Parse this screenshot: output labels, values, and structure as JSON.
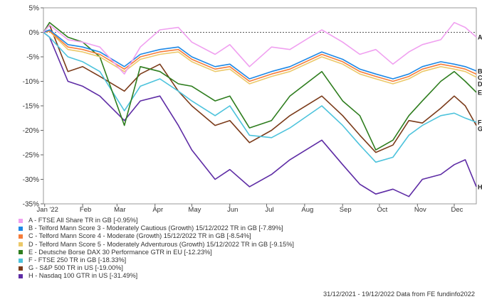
{
  "chart_data": {
    "type": "line",
    "title": "",
    "xlabel": "",
    "ylabel": "",
    "x_range": [
      "2021-12-31",
      "2022-12-19"
    ],
    "x_ticks": [
      {
        "date": "2022-01-01",
        "label": "Jan '22"
      },
      {
        "date": "2022-02-01",
        "label": "Feb"
      },
      {
        "date": "2022-03-01",
        "label": "Mar"
      },
      {
        "date": "2022-04-01",
        "label": "Apr"
      },
      {
        "date": "2022-05-01",
        "label": "May"
      },
      {
        "date": "2022-06-01",
        "label": "Jun"
      },
      {
        "date": "2022-07-01",
        "label": "Jul"
      },
      {
        "date": "2022-08-01",
        "label": "Aug"
      },
      {
        "date": "2022-09-01",
        "label": "Sep"
      },
      {
        "date": "2022-10-01",
        "label": "Oct"
      },
      {
        "date": "2022-11-01",
        "label": "Nov"
      },
      {
        "date": "2022-12-01",
        "label": "Dec"
      }
    ],
    "y_ticks": [
      {
        "value": 5,
        "label": "5%"
      },
      {
        "value": 0,
        "label": "0%"
      },
      {
        "value": -5,
        "label": "-5%"
      },
      {
        "value": -10,
        "label": "-10%"
      },
      {
        "value": -15,
        "label": "-15%"
      },
      {
        "value": -20,
        "label": "-20%"
      },
      {
        "value": -25,
        "label": "-25%"
      },
      {
        "value": -30,
        "label": "-30%"
      },
      {
        "value": -35,
        "label": "-35%"
      }
    ],
    "ylim": [
      -35,
      5
    ],
    "reference_line": 0,
    "grid": false,
    "legend_position": "bottom-left",
    "series": [
      {
        "letter": "A",
        "name": "A - FTSE All Share TR in GB [-0.95%]",
        "color": "#f0a0f0",
        "dates": [
          "2021-12-31",
          "2022-01-05",
          "2022-01-20",
          "2022-02-01",
          "2022-02-15",
          "2022-03-07",
          "2022-03-20",
          "2022-04-05",
          "2022-04-20",
          "2022-05-01",
          "2022-05-20",
          "2022-06-01",
          "2022-06-17",
          "2022-07-05",
          "2022-07-20",
          "2022-08-15",
          "2022-09-01",
          "2022-09-15",
          "2022-09-28",
          "2022-10-12",
          "2022-10-25",
          "2022-11-05",
          "2022-11-20",
          "2022-12-01",
          "2022-12-10",
          "2022-12-19"
        ],
        "values": [
          0,
          1.5,
          -1.5,
          -2.0,
          -3.0,
          -8.5,
          -3.0,
          0.5,
          1.0,
          -2.0,
          -4.5,
          -2.5,
          -7.0,
          -3.0,
          -3.5,
          0.5,
          -2.0,
          -4.5,
          -3.5,
          -6.5,
          -4.0,
          -2.5,
          -1.5,
          2.0,
          1.0,
          -0.95
        ]
      },
      {
        "letter": "B",
        "name": "B - Telford Mann Score 3 - Moderately Cautious (Growth) 15/12/2022 TR in GB [-7.89%]",
        "color": "#1e88e5",
        "dates": [
          "2021-12-31",
          "2022-01-05",
          "2022-01-20",
          "2022-02-01",
          "2022-02-15",
          "2022-03-07",
          "2022-03-20",
          "2022-04-05",
          "2022-04-20",
          "2022-05-01",
          "2022-05-20",
          "2022-06-01",
          "2022-06-17",
          "2022-07-05",
          "2022-07-20",
          "2022-08-15",
          "2022-09-01",
          "2022-09-15",
          "2022-09-28",
          "2022-10-12",
          "2022-10-25",
          "2022-11-05",
          "2022-11-20",
          "2022-12-01",
          "2022-12-10",
          "2022-12-19"
        ],
        "values": [
          0,
          0.5,
          -2.5,
          -3.0,
          -4.0,
          -7.0,
          -4.5,
          -3.5,
          -3.0,
          -5.0,
          -7.0,
          -6.5,
          -9.5,
          -8.0,
          -7.0,
          -4.0,
          -5.5,
          -7.5,
          -8.5,
          -9.5,
          -8.5,
          -7.0,
          -6.0,
          -6.5,
          -7.0,
          -7.89
        ]
      },
      {
        "letter": "C",
        "name": "C - Telford Mann Score 4 - Moderate (Growth) 15/12/2022 TR in GB [-8.54%]",
        "color": "#f57c3a",
        "dates": [
          "2021-12-31",
          "2022-01-05",
          "2022-01-20",
          "2022-02-01",
          "2022-02-15",
          "2022-03-07",
          "2022-03-20",
          "2022-04-05",
          "2022-04-20",
          "2022-05-01",
          "2022-05-20",
          "2022-06-01",
          "2022-06-17",
          "2022-07-05",
          "2022-07-20",
          "2022-08-15",
          "2022-09-01",
          "2022-09-15",
          "2022-09-28",
          "2022-10-12",
          "2022-10-25",
          "2022-11-05",
          "2022-11-20",
          "2022-12-01",
          "2022-12-10",
          "2022-12-19"
        ],
        "values": [
          0,
          0.3,
          -3.0,
          -3.5,
          -4.5,
          -7.5,
          -5.0,
          -4.0,
          -3.5,
          -5.5,
          -7.5,
          -7.0,
          -10.0,
          -8.5,
          -7.5,
          -4.5,
          -6.0,
          -8.0,
          -9.0,
          -10.0,
          -9.0,
          -7.5,
          -6.5,
          -7.0,
          -7.5,
          -8.54
        ]
      },
      {
        "letter": "D",
        "name": "D - Telford Mann Score 5 - Moderately Adventurous (Growth) 15/12/2022 TR in GB [-9.15%]",
        "color": "#ecc96a",
        "dates": [
          "2021-12-31",
          "2022-01-05",
          "2022-01-20",
          "2022-02-01",
          "2022-02-15",
          "2022-03-07",
          "2022-03-20",
          "2022-04-05",
          "2022-04-20",
          "2022-05-01",
          "2022-05-20",
          "2022-06-01",
          "2022-06-17",
          "2022-07-05",
          "2022-07-20",
          "2022-08-15",
          "2022-09-01",
          "2022-09-15",
          "2022-09-28",
          "2022-10-12",
          "2022-10-25",
          "2022-11-05",
          "2022-11-20",
          "2022-12-01",
          "2022-12-10",
          "2022-12-19"
        ],
        "values": [
          0,
          0.2,
          -3.5,
          -4.0,
          -5.0,
          -8.0,
          -5.5,
          -4.5,
          -4.0,
          -6.0,
          -8.0,
          -7.5,
          -10.5,
          -9.0,
          -8.0,
          -5.0,
          -6.5,
          -8.5,
          -9.5,
          -10.5,
          -9.5,
          -8.0,
          -7.0,
          -7.5,
          -8.0,
          -9.15
        ]
      },
      {
        "letter": "E",
        "name": "E - Deutsche Borse DAX 30 Performance GTR in EU [-12.23%]",
        "color": "#2e7d1e",
        "dates": [
          "2021-12-31",
          "2022-01-05",
          "2022-01-20",
          "2022-02-01",
          "2022-02-15",
          "2022-03-07",
          "2022-03-20",
          "2022-04-05",
          "2022-04-20",
          "2022-05-01",
          "2022-05-20",
          "2022-06-01",
          "2022-06-17",
          "2022-07-05",
          "2022-07-20",
          "2022-08-15",
          "2022-09-01",
          "2022-09-15",
          "2022-09-28",
          "2022-10-12",
          "2022-10-25",
          "2022-11-05",
          "2022-11-20",
          "2022-12-01",
          "2022-12-10",
          "2022-12-19"
        ],
        "values": [
          0,
          2.0,
          -1.0,
          -2.0,
          -5.0,
          -19.0,
          -7.0,
          -8.0,
          -10.5,
          -11.0,
          -14.0,
          -13.0,
          -19.5,
          -18.0,
          -13.0,
          -8.0,
          -14.0,
          -17.0,
          -24.0,
          -22.0,
          -17.0,
          -14.0,
          -10.0,
          -8.0,
          -10.0,
          -12.23
        ]
      },
      {
        "letter": "F",
        "name": "F - FTSE 250 TR in GB [-18.33%]",
        "color": "#4dc3dc",
        "dates": [
          "2021-12-31",
          "2022-01-05",
          "2022-01-20",
          "2022-02-01",
          "2022-02-15",
          "2022-03-07",
          "2022-03-20",
          "2022-04-05",
          "2022-04-20",
          "2022-05-01",
          "2022-05-20",
          "2022-06-01",
          "2022-06-17",
          "2022-07-05",
          "2022-07-20",
          "2022-08-15",
          "2022-09-01",
          "2022-09-15",
          "2022-09-28",
          "2022-10-12",
          "2022-10-25",
          "2022-11-05",
          "2022-11-20",
          "2022-12-01",
          "2022-12-10",
          "2022-12-19"
        ],
        "values": [
          0,
          -1.0,
          -5.0,
          -6.0,
          -8.0,
          -16.0,
          -11.0,
          -9.5,
          -12.0,
          -14.0,
          -17.0,
          -15.0,
          -21.0,
          -21.5,
          -19.5,
          -15.0,
          -19.0,
          -23.0,
          -26.5,
          -25.5,
          -21.0,
          -19.0,
          -17.0,
          -16.5,
          -17.5,
          -18.33
        ]
      },
      {
        "letter": "G",
        "name": "G - S&P 500 TR in US [-19.00%]",
        "color": "#7b3b1a",
        "dates": [
          "2021-12-31",
          "2022-01-05",
          "2022-01-20",
          "2022-02-01",
          "2022-02-15",
          "2022-03-07",
          "2022-03-20",
          "2022-04-05",
          "2022-04-20",
          "2022-05-01",
          "2022-05-20",
          "2022-06-01",
          "2022-06-17",
          "2022-07-05",
          "2022-07-20",
          "2022-08-15",
          "2022-09-01",
          "2022-09-15",
          "2022-09-28",
          "2022-10-12",
          "2022-10-25",
          "2022-11-05",
          "2022-11-20",
          "2022-12-01",
          "2022-12-10",
          "2022-12-19"
        ],
        "values": [
          0,
          1.5,
          -8.0,
          -7.0,
          -9.0,
          -12.0,
          -8.5,
          -6.5,
          -12.0,
          -15.0,
          -19.0,
          -18.0,
          -22.5,
          -20.0,
          -17.0,
          -13.0,
          -17.0,
          -21.0,
          -24.5,
          -23.0,
          -18.0,
          -18.5,
          -15.5,
          -13.0,
          -15.0,
          -19.0
        ]
      },
      {
        "letter": "H",
        "name": "H - Nasdaq 100 GTR in US [-31.49%]",
        "color": "#5e2ca5",
        "dates": [
          "2021-12-31",
          "2022-01-05",
          "2022-01-20",
          "2022-02-01",
          "2022-02-15",
          "2022-03-07",
          "2022-03-20",
          "2022-04-05",
          "2022-04-20",
          "2022-05-01",
          "2022-05-20",
          "2022-06-01",
          "2022-06-17",
          "2022-07-05",
          "2022-07-20",
          "2022-08-15",
          "2022-09-01",
          "2022-09-15",
          "2022-09-28",
          "2022-10-12",
          "2022-10-25",
          "2022-11-05",
          "2022-11-20",
          "2022-12-01",
          "2022-12-10",
          "2022-12-19"
        ],
        "values": [
          0,
          -1.0,
          -10.0,
          -11.0,
          -13.0,
          -18.0,
          -14.0,
          -13.0,
          -19.0,
          -24.0,
          -30.0,
          -28.0,
          -31.5,
          -29.0,
          -26.0,
          -22.0,
          -27.0,
          -31.0,
          -33.0,
          -32.0,
          -33.5,
          -30.0,
          -29.0,
          -27.0,
          -26.0,
          -31.49
        ]
      }
    ]
  },
  "footer": {
    "text": "31/12/2021 - 19/12/2022 Data from FE fundinfo2022"
  }
}
